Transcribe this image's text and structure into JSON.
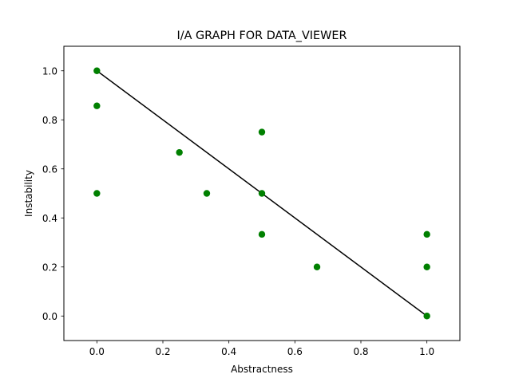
{
  "chart_data": {
    "type": "scatter",
    "title": "I/A GRAPH FOR DATA_VIEWER",
    "xlabel": "Abstractness",
    "ylabel": "Instability",
    "xlim": [
      -0.1,
      1.1
    ],
    "ylim": [
      -0.1,
      1.1
    ],
    "xticks": [
      0.0,
      0.2,
      0.4,
      0.6,
      0.8,
      1.0
    ],
    "yticks": [
      0.0,
      0.2,
      0.4,
      0.6,
      0.8,
      1.0
    ],
    "xtick_labels": [
      "0.0",
      "0.2",
      "0.4",
      "0.6",
      "0.8",
      "1.0"
    ],
    "ytick_labels": [
      "0.0",
      "0.2",
      "0.4",
      "0.6",
      "0.8",
      "1.0"
    ],
    "grid": false,
    "points": [
      {
        "x": 0.0,
        "y": 1.0
      },
      {
        "x": 0.0,
        "y": 0.857
      },
      {
        "x": 0.0,
        "y": 0.5
      },
      {
        "x": 0.25,
        "y": 0.667
      },
      {
        "x": 0.333,
        "y": 0.5
      },
      {
        "x": 0.5,
        "y": 0.75
      },
      {
        "x": 0.5,
        "y": 0.5
      },
      {
        "x": 0.5,
        "y": 0.333
      },
      {
        "x": 0.667,
        "y": 0.2
      },
      {
        "x": 1.0,
        "y": 0.333
      },
      {
        "x": 1.0,
        "y": 0.2
      },
      {
        "x": 1.0,
        "y": 0.0
      }
    ],
    "main_sequence": {
      "x": [
        0.0,
        1.0
      ],
      "y": [
        1.0,
        0.0
      ]
    },
    "colors": {
      "points": "#008000",
      "line": "#000000"
    }
  }
}
